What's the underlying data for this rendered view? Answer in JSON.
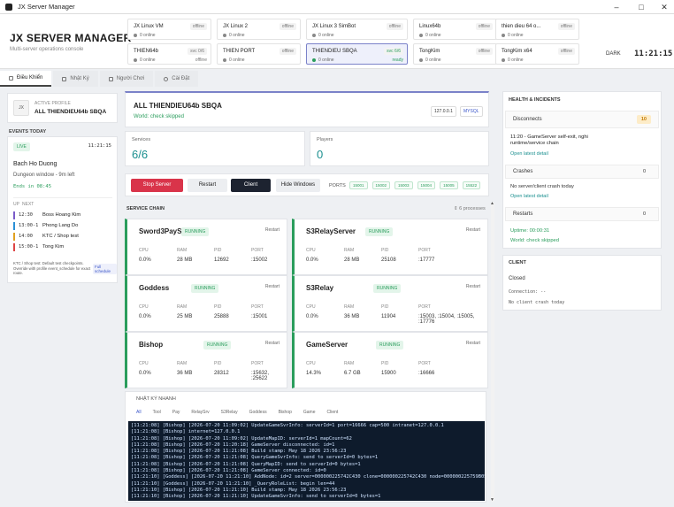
{
  "window": {
    "title": "JX Server Manager"
  },
  "header": {
    "brand": "JX SERVER MANAGER",
    "subtitle": "Multi-server operations console",
    "dark_label": "DARK",
    "clock": "11:21:15"
  },
  "servers": [
    {
      "name": "JX Linux VM",
      "badge": "offline",
      "online": "0 online",
      "badge2": ""
    },
    {
      "name": "JX Linux 2",
      "badge": "offline",
      "online": "0 online",
      "badge2": ""
    },
    {
      "name": "JX Linux 3 SimBot",
      "badge": "offline",
      "online": "0 online",
      "badge2": ""
    },
    {
      "name": "Linux64b",
      "badge": "offline",
      "online": "0 online",
      "badge2": ""
    },
    {
      "name": "thien dieu 64 o...",
      "badge": "offline",
      "online": "0 online",
      "badge2": ""
    },
    {
      "name": "THIEN64b",
      "badge": "svc 0/6",
      "online": "0 online",
      "badge2": "offline"
    },
    {
      "name": "THIEN PORT",
      "badge": "offline",
      "online": "0 online",
      "badge2": ""
    },
    {
      "name": "THIENDIEU SBQA",
      "badge": "svc 6/6",
      "online": "0 online",
      "badge2": "ready"
    },
    {
      "name": "TongKim",
      "badge": "offline",
      "online": "0 online",
      "badge2": ""
    },
    {
      "name": "TongKim x64",
      "badge": "offline",
      "online": "0 online",
      "badge2": ""
    }
  ],
  "tabs": [
    "Điều Khiển",
    "Nhật Ký",
    "Người Chơi",
    "Cài Đặt"
  ],
  "profile": {
    "label": "ACTIVE PROFILE",
    "name": "ALL THIENDIEU64b SBQA",
    "initials": "JX"
  },
  "events": {
    "title": "EVENTS TODAY",
    "live": "LIVE",
    "time": "11:21:15",
    "event_name": "Bach Ho Duong",
    "event_desc": "Dungeon window - 9m left",
    "ends": "Ends in 08:45",
    "col_up": "UP",
    "col_next": "NEXT",
    "list": [
      {
        "time": "12:30",
        "name": "Boss Hoang Kim",
        "color": "#7a5cc9"
      },
      {
        "time": "13:00-1",
        "name": "Phong Lang Do",
        "color": "#2a8fd6"
      },
      {
        "time": "14:00",
        "name": "KTC / Shop test",
        "color": "#e0a020"
      },
      {
        "time": "15:00-1",
        "name": "Tong Kim",
        "color": "#d44"
      }
    ],
    "note": "KTC / Shop test: Default test checkpoints. Override with profile event_schedule for exact route.",
    "note_btn": "Full schedule"
  },
  "main": {
    "title": "ALL THIENDIEU64b SBQA",
    "ip": "127.0.0.1",
    "db": "MYSQL",
    "world": "World: check skipped"
  },
  "stats": {
    "services_label": "Services",
    "services_value": "6/6",
    "players_label": "Players",
    "players_value": "0"
  },
  "controls": {
    "stop": "Stop Server",
    "restart": "Restart",
    "client": "Client",
    "hide": "Hide Windows",
    "ports_label": "PORTS",
    "ports": [
      "15001",
      "15002",
      "15003",
      "15004",
      "15005",
      "15522"
    ]
  },
  "chain": {
    "title": "SERVICE CHAIN",
    "count": "6 processes",
    "headers": {
      "cpu": "CPU",
      "ram": "RAM",
      "pid": "PID",
      "port": "PORT"
    },
    "status": "RUNNING",
    "restart": "Restart",
    "services": [
      {
        "name": "Sword3PaySys",
        "cpu": "0.0%",
        "ram": "28 MB",
        "pid": "12692",
        "port": ":15002"
      },
      {
        "name": "S3RelayServer",
        "cpu": "0.0%",
        "ram": "28 MB",
        "pid": "25108",
        "port": ":17777"
      },
      {
        "name": "Goddess",
        "cpu": "0.0%",
        "ram": "25 MB",
        "pid": "25888",
        "port": ":15001"
      },
      {
        "name": "S3Relay",
        "cpu": "0.0%",
        "ram": "36 MB",
        "pid": "11904",
        "port": ":15003, :15004, :15005, :17776"
      },
      {
        "name": "Bishop",
        "cpu": "0.0%",
        "ram": "36 MB",
        "pid": "28312",
        "port": ":15632, :25622"
      },
      {
        "name": "GameServer",
        "cpu": "14.3%",
        "ram": "6.7 GB",
        "pid": "15900",
        "port": ":16666"
      }
    ]
  },
  "log": {
    "title": "NHẬT KÝ NHANH",
    "filters": [
      "All",
      "Tool",
      "Pay",
      "RelaySrv",
      "S3Relay",
      "Goddess",
      "Bishop",
      "Game",
      "Client"
    ],
    "lines": [
      "[11:21:08] [Bishop] [2026-07-20 11:09:02] UpdateGameSvrInfo: serverId=1 port=16666 cap=500 intranet=127.0.0.1",
      "[11:21:08] [Bishop] internet=127.0.0.1",
      "[11:21:08] [Bishop] [2026-07-20 11:09:02] UpdateMapID: serverId=1 mapCount=62",
      "[11:21:08] [Bishop] [2026-07-20 11:20:18] GameServer disconnected: id=1",
      "[11:21:08] [Bishop] [2026-07-20 11:21:08] Build stamp: May 18 2026 23:56:23",
      "[11:21:08] [Bishop] [2026-07-20 11:21:08] QueryGameSvrInfo: send to serverId=0 bytes=1",
      "[11:21:08] [Bishop] [2026-07-20 11:21:08] QueryMapID: send to serverId=0 bytes=1",
      "[11:21:08] [Bishop] [2026-07-20 11:21:08] GameServer connected: id=0",
      "[11:21:10] [Goddess] [2026-07-20 11:21:10] AddNode: id=2 server=000000225742C430 clone=000000225742C430 node=000000225759B050",
      "[11:21:10] [Goddess] [2026-07-20 11:21:10] _QueryRoleList: begin len=44",
      "[11:21:10] [Bishop] [2026-07-20 11:21:10] Build stamp: May 18 2026 23:56:23",
      "[11:21:10] [Bishop] [2026-07-20 11:21:10] UpdateGameSvrInfo: send to serverId=0 bytes=1"
    ]
  },
  "health": {
    "title": "HEALTH & INCIDENTS",
    "disconnects_label": "Disconnects",
    "disconnects_count": "10",
    "incident": "11:20 - GameServer self-exit, nghi runtime/service chain",
    "open_latest": "Open latest detail",
    "crashes_label": "Crashes",
    "crashes_count": "0",
    "crashes_text": "No server/client crash today",
    "open_latest2": "Open latest detail",
    "restarts_label": "Restarts",
    "restarts_count": "0",
    "uptime": "Uptime: 00:00:31",
    "world": "World: check skipped"
  },
  "client": {
    "title": "CLIENT",
    "status": "Closed",
    "connection": "Connection: --",
    "crash": "No client crash today"
  }
}
